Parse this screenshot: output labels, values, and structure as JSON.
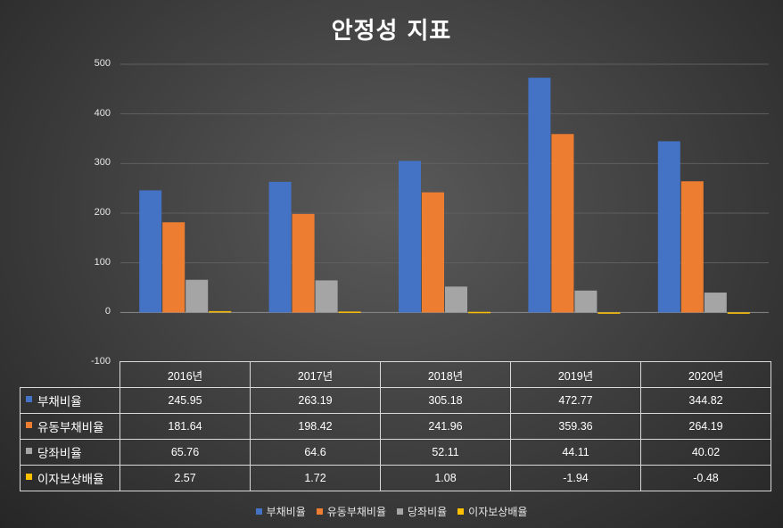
{
  "chart_data": {
    "type": "bar",
    "title": "안정성 지표",
    "categories": [
      "2016년",
      "2017년",
      "2018년",
      "2019년",
      "2020년"
    ],
    "series": [
      {
        "name": "부채비율",
        "color": "#4472c4",
        "values": [
          245.95,
          263.19,
          305.18,
          472.77,
          344.82
        ],
        "labels": [
          "245.95",
          "263.19",
          "305.18",
          "472.77",
          "344.82"
        ]
      },
      {
        "name": "유동부채비율",
        "color": "#ed7d31",
        "values": [
          181.64,
          198.42,
          241.96,
          359.36,
          264.19
        ],
        "labels": [
          "181.64",
          "198.42",
          "241.96",
          "359.36",
          "264.19"
        ]
      },
      {
        "name": "당좌비율",
        "color": "#a5a5a5",
        "values": [
          65.76,
          64.6,
          52.11,
          44.11,
          40.02
        ],
        "labels": [
          "65.76",
          "64.6",
          "52.11",
          "44.11",
          "40.02"
        ]
      },
      {
        "name": "이자보상배율",
        "color": "#ffc000",
        "values": [
          2.57,
          1.72,
          1.08,
          -1.94,
          -0.48
        ],
        "labels": [
          "2.57",
          "1.72",
          "1.08",
          "-1.94",
          "-0.48"
        ]
      }
    ],
    "ylim": [
      -100,
      500
    ],
    "yticks": [
      "500",
      "400",
      "300",
      "200",
      "100",
      "0",
      "-100"
    ],
    "grid": true,
    "legend": "bottom",
    "data_table": true
  }
}
